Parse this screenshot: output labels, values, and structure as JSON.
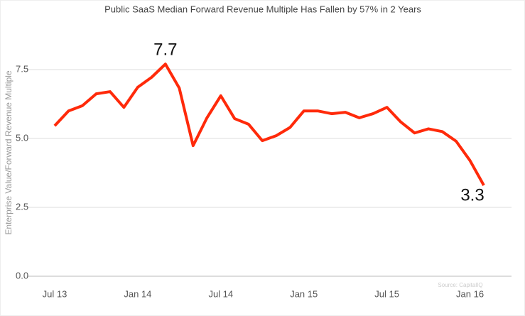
{
  "chart_data": {
    "type": "line",
    "title": "Public SaaS Median Forward Revenue Multiple Has Fallen by 57% in 2 Years",
    "y_label": "Enterprise Value/Forward Revenue Multiple",
    "source": "Source: CapitalIQ",
    "x": [
      "2013-07",
      "2013-08",
      "2013-09",
      "2013-10",
      "2013-11",
      "2013-12",
      "2014-01",
      "2014-02",
      "2014-03",
      "2014-04",
      "2014-05",
      "2014-06",
      "2014-07",
      "2014-08",
      "2014-09",
      "2014-10",
      "2014-11",
      "2014-12",
      "2015-01",
      "2015-02",
      "2015-03",
      "2015-04",
      "2015-05",
      "2015-06",
      "2015-07",
      "2015-08",
      "2015-09",
      "2015-10",
      "2015-11",
      "2015-12",
      "2016-01",
      "2016-02"
    ],
    "series": [
      {
        "name": "Median Forward Revenue Multiple",
        "color": "#ff2a0a",
        "values": [
          5.46,
          6.0,
          6.19,
          6.62,
          6.7,
          6.13,
          6.86,
          7.22,
          7.7,
          6.83,
          4.74,
          5.75,
          6.55,
          5.72,
          5.52,
          4.92,
          5.1,
          5.4,
          6.0,
          6.0,
          5.9,
          5.95,
          5.75,
          5.9,
          6.13,
          5.6,
          5.2,
          5.35,
          5.25,
          4.9,
          4.2,
          3.3
        ]
      }
    ],
    "xlim": [
      "2013-05",
      "2016-04"
    ],
    "xticks": [
      {
        "value": "2013-07",
        "label": "Jul 13"
      },
      {
        "value": "2014-01",
        "label": "Jan 14"
      },
      {
        "value": "2014-07",
        "label": "Jul 14"
      },
      {
        "value": "2015-01",
        "label": "Jan 15"
      },
      {
        "value": "2015-07",
        "label": "Jul 15"
      },
      {
        "value": "2016-01",
        "label": "Jan 16"
      }
    ],
    "ylim": [
      0,
      9.15
    ],
    "yticks": [
      {
        "value": 0,
        "label": "0.0"
      },
      {
        "value": 2.5,
        "label": "2.5"
      },
      {
        "value": 5,
        "label": "5.0"
      },
      {
        "value": 7.5,
        "label": "7.5"
      }
    ],
    "grid": true
  }
}
